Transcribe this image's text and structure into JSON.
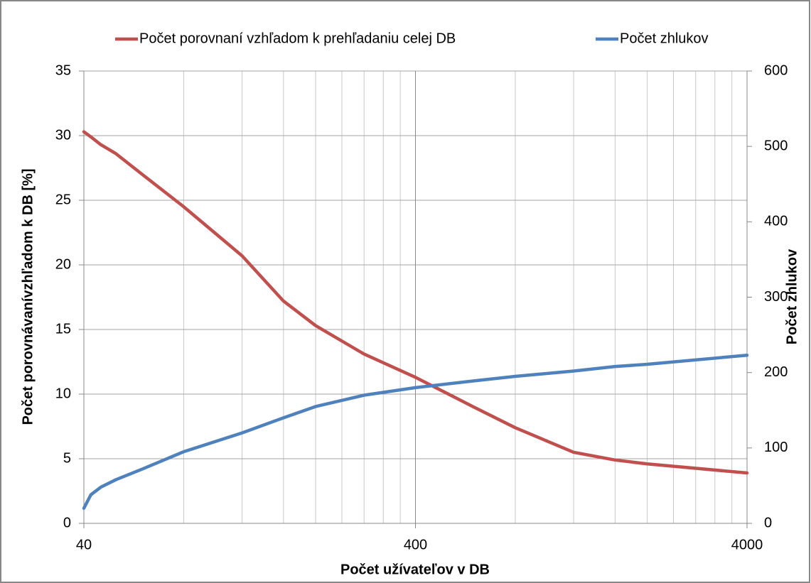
{
  "chart_data": {
    "type": "line",
    "x_label": "Počet užívateľov v DB",
    "y_label": "Počet porovnávanívzhľadom  k DB [%]",
    "y2_label": "Počet zhlukov",
    "x": [
      40,
      42,
      45,
      50,
      60,
      80,
      120,
      160,
      200,
      280,
      400,
      600,
      800,
      1200,
      1600,
      2000,
      4000
    ],
    "series": [
      {
        "name": "Počet porovnaní vzhľadom k prehľadaniu celej DB",
        "color": "#c0504d",
        "values": [
          30.3,
          29.9,
          29.3,
          28.6,
          27,
          24.5,
          20.7,
          17.2,
          15.3,
          13.1,
          11.3,
          9.0,
          7.4,
          5.5,
          4.9,
          4.6,
          3.9
        ]
      },
      {
        "name": "Počet zhlukov",
        "color": "#4f81bd",
        "axis": "y2",
        "values": [
          20,
          38,
          48,
          58,
          72,
          95,
          120,
          140,
          155,
          170,
          180,
          189,
          195,
          202,
          208,
          211,
          223
        ]
      }
    ],
    "xscale": "log",
    "xlim": [
      40,
      4000
    ],
    "xticks": [
      40,
      400,
      4000
    ],
    "xminor": [
      80,
      120,
      160,
      200,
      240,
      280,
      320,
      360,
      800,
      1200,
      1600,
      2000,
      2400,
      2800,
      3200,
      3600
    ],
    "ylim": [
      0,
      35
    ],
    "yticks": [
      0,
      5,
      10,
      15,
      20,
      25,
      30,
      35
    ],
    "y2lim": [
      0,
      600
    ],
    "y2ticks": [
      0,
      100,
      200,
      300,
      400,
      500,
      600
    ],
    "grid": true,
    "legend": "top"
  }
}
